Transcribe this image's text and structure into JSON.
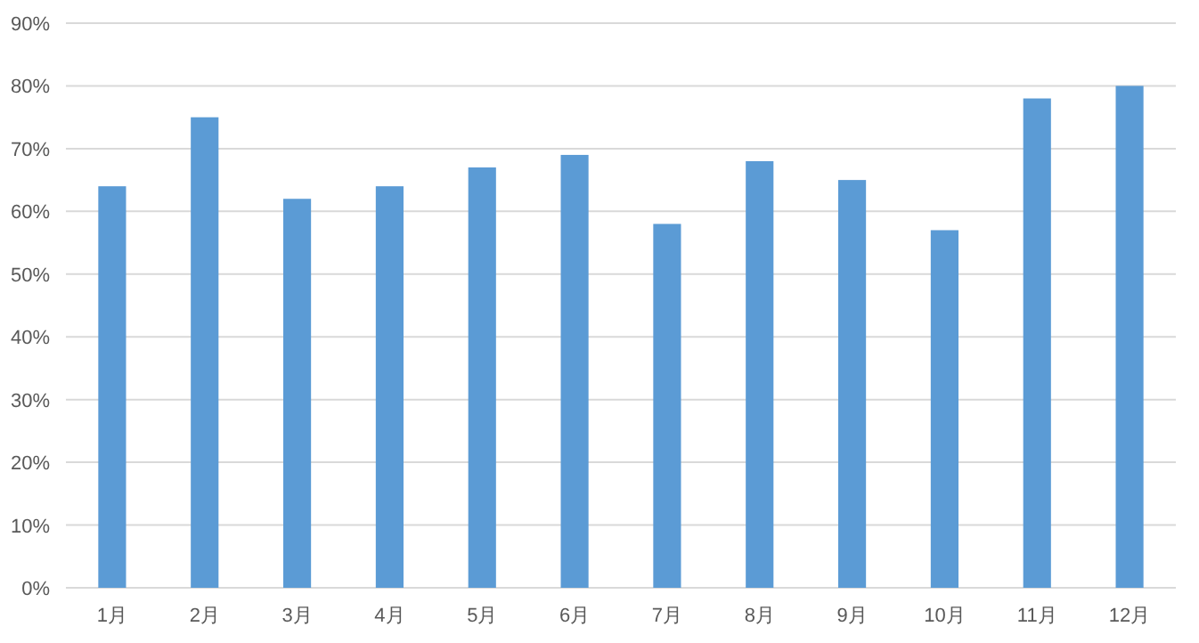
{
  "chart_data": {
    "type": "bar",
    "categories": [
      "1月",
      "2月",
      "3月",
      "4月",
      "5月",
      "6月",
      "7月",
      "8月",
      "9月",
      "10月",
      "11月",
      "12月"
    ],
    "values": [
      64,
      75,
      62,
      64,
      67,
      69,
      58,
      68,
      65,
      57,
      78,
      80
    ],
    "color": "#5b9bd5",
    "ylim": [
      0,
      90
    ],
    "yticks": [
      {
        "value": 0,
        "label": "0%"
      },
      {
        "value": 10,
        "label": "10%"
      },
      {
        "value": 20,
        "label": "20%"
      },
      {
        "value": 30,
        "label": "30%"
      },
      {
        "value": 40,
        "label": "40%"
      },
      {
        "value": 50,
        "label": "50%"
      },
      {
        "value": 60,
        "label": "60%"
      },
      {
        "value": 70,
        "label": "70%"
      },
      {
        "value": 80,
        "label": "80%"
      },
      {
        "value": 90,
        "label": "90%"
      }
    ],
    "grid": "y"
  }
}
